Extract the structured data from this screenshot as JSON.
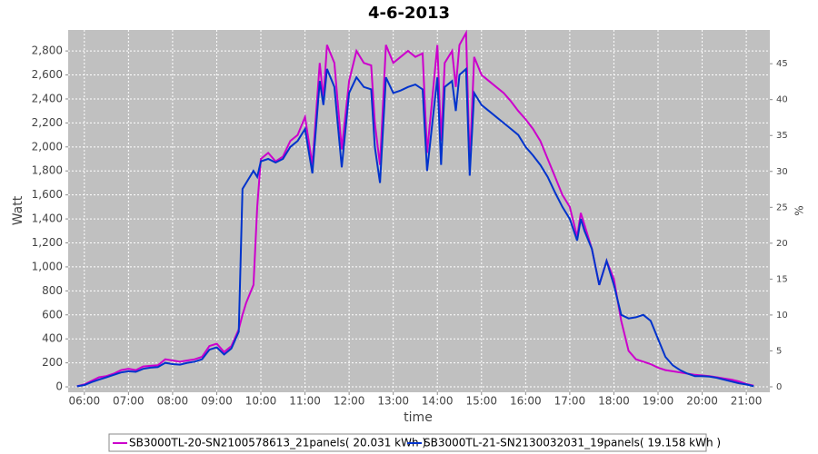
{
  "chart_data": {
    "type": "line",
    "title": "4-6-2013",
    "xlabel": "time",
    "ylabel": "Watt",
    "y2label": "%",
    "x": [
      "05:50",
      "06:00",
      "06:10",
      "06:20",
      "06:30",
      "06:40",
      "06:50",
      "07:00",
      "07:10",
      "07:20",
      "07:30",
      "07:40",
      "07:50",
      "08:00",
      "08:10",
      "08:20",
      "08:30",
      "08:40",
      "08:50",
      "09:00",
      "09:10",
      "09:20",
      "09:30",
      "09:35",
      "09:40",
      "09:50",
      "09:55",
      "10:00",
      "10:10",
      "10:20",
      "10:30",
      "10:40",
      "10:50",
      "11:00",
      "11:10",
      "11:20",
      "11:25",
      "11:30",
      "11:40",
      "11:50",
      "12:00",
      "12:10",
      "12:20",
      "12:30",
      "12:35",
      "12:42",
      "12:50",
      "13:00",
      "13:10",
      "13:20",
      "13:30",
      "13:40",
      "13:46",
      "14:00",
      "14:05",
      "14:10",
      "14:20",
      "14:25",
      "14:30",
      "14:39",
      "14:44",
      "14:50",
      "15:00",
      "15:10",
      "15:20",
      "15:30",
      "15:40",
      "15:50",
      "16:00",
      "16:10",
      "16:20",
      "16:30",
      "16:40",
      "16:50",
      "17:00",
      "17:10",
      "17:15",
      "17:20",
      "17:30",
      "17:40",
      "17:50",
      "18:00",
      "18:10",
      "18:20",
      "18:30",
      "18:40",
      "18:50",
      "19:00",
      "19:10",
      "19:20",
      "19:30",
      "19:40",
      "19:50",
      "20:00",
      "20:10",
      "20:20",
      "20:30",
      "20:40",
      "20:50",
      "21:00",
      "21:10"
    ],
    "series": [
      {
        "name": "SB3000TL-20-SN2100578613_21panels( 20.031 kWh )",
        "color": "#cc00cc",
        "values": [
          5,
          20,
          50,
          80,
          90,
          110,
          140,
          150,
          140,
          170,
          175,
          180,
          230,
          220,
          210,
          220,
          230,
          250,
          340,
          360,
          290,
          340,
          480,
          600,
          700,
          850,
          1500,
          1900,
          1950,
          1880,
          1920,
          2050,
          2100,
          2250,
          1850,
          2700,
          2400,
          2850,
          2700,
          1980,
          2550,
          2800,
          2700,
          2680,
          2200,
          1850,
          2850,
          2700,
          2750,
          2800,
          2750,
          2780,
          1950,
          2850,
          2050,
          2700,
          2800,
          2500,
          2850,
          2950,
          1850,
          2750,
          2600,
          2550,
          2500,
          2450,
          2380,
          2300,
          2230,
          2150,
          2050,
          1900,
          1750,
          1600,
          1500,
          1250,
          1450,
          1350,
          1150,
          850,
          1050,
          900,
          550,
          300,
          230,
          210,
          190,
          160,
          140,
          130,
          120,
          110,
          100,
          95,
          90,
          80,
          70,
          60,
          45,
          25,
          10
        ]
      },
      {
        "name": "SB3000TL-21-SN2130032031_19panels( 19.158 kWh )",
        "color": "#0033cc",
        "values": [
          5,
          15,
          40,
          60,
          80,
          100,
          120,
          130,
          125,
          150,
          160,
          165,
          200,
          190,
          185,
          200,
          210,
          230,
          310,
          330,
          270,
          320,
          460,
          1650,
          1700,
          1800,
          1750,
          1880,
          1900,
          1870,
          1900,
          2000,
          2050,
          2150,
          1780,
          2550,
          2350,
          2650,
          2500,
          1830,
          2450,
          2580,
          2500,
          2480,
          2000,
          1700,
          2580,
          2450,
          2470,
          2500,
          2520,
          2480,
          1800,
          2580,
          1850,
          2500,
          2550,
          2300,
          2600,
          2650,
          1760,
          2450,
          2350,
          2300,
          2250,
          2200,
          2150,
          2100,
          2000,
          1930,
          1850,
          1750,
          1620,
          1500,
          1400,
          1220,
          1400,
          1300,
          1150,
          850,
          1050,
          850,
          600,
          570,
          580,
          600,
          550,
          400,
          250,
          180,
          140,
          110,
          90,
          90,
          85,
          75,
          60,
          45,
          30,
          20,
          5
        ]
      }
    ],
    "xlim": [
      "05:38",
      "21:32"
    ],
    "xticks": [
      "06:00",
      "07:00",
      "08:00",
      "09:00",
      "10:00",
      "11:00",
      "12:00",
      "13:00",
      "14:00",
      "15:00",
      "16:00",
      "17:00",
      "18:00",
      "19:00",
      "20:00",
      "21:00"
    ],
    "ylim": [
      -45,
      2975
    ],
    "yticks": [
      0,
      200,
      400,
      600,
      800,
      {
        "value": 1000,
        "label": "1,000"
      },
      {
        "value": 1200,
        "label": "1,200"
      },
      {
        "value": 1400,
        "label": "1,400"
      },
      {
        "value": 1600,
        "label": "1,600"
      },
      {
        "value": 1800,
        "label": "1,800"
      },
      {
        "value": 2000,
        "label": "2,000"
      },
      {
        "value": 2200,
        "label": "2,200"
      },
      {
        "value": 2400,
        "label": "2,400"
      },
      {
        "value": 2600,
        "label": "2,600"
      },
      {
        "value": 2800,
        "label": "2,800"
      }
    ],
    "y2lim": [
      -0.76,
      49.7
    ],
    "y2ticks": [
      0,
      5,
      10,
      15,
      20,
      25,
      30,
      35,
      40,
      45
    ],
    "grid": true
  }
}
